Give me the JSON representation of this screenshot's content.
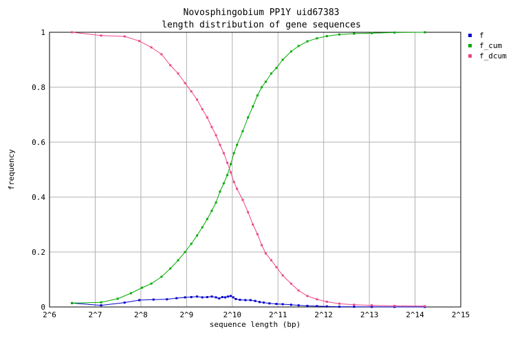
{
  "chart_data": {
    "type": "line",
    "title": "Novosphingobium PP1Y uid67383",
    "subtitle": "length distribution of gene sequences",
    "xlabel": "sequence length (bp)",
    "ylabel": "frequency",
    "x_scale": "log2",
    "xlim_exp": [
      6,
      15
    ],
    "ylim": [
      0,
      1
    ],
    "grid": true,
    "legend_position": "right",
    "x_ticks": [
      "2^6",
      "2^7",
      "2^8",
      "2^9",
      "2^10",
      "2^11",
      "2^12",
      "2^13",
      "2^14",
      "2^15"
    ],
    "y_ticks": [
      "0",
      "0.2",
      "0.4",
      "0.6",
      "0.8",
      "1"
    ],
    "series": [
      {
        "name": "f",
        "color": "#0000cc",
        "points": [
          [
            90,
            0.014
          ],
          [
            140,
            0.006
          ],
          [
            200,
            0.016
          ],
          [
            250,
            0.025
          ],
          [
            310,
            0.027
          ],
          [
            380,
            0.028
          ],
          [
            440,
            0.032
          ],
          [
            500,
            0.035
          ],
          [
            550,
            0.036
          ],
          [
            600,
            0.038
          ],
          [
            650,
            0.035
          ],
          [
            700,
            0.036
          ],
          [
            750,
            0.038
          ],
          [
            800,
            0.035
          ],
          [
            840,
            0.031
          ],
          [
            880,
            0.036
          ],
          [
            920,
            0.035
          ],
          [
            960,
            0.038
          ],
          [
            1000,
            0.04
          ],
          [
            1040,
            0.035
          ],
          [
            1080,
            0.029
          ],
          [
            1150,
            0.026
          ],
          [
            1250,
            0.025
          ],
          [
            1350,
            0.025
          ],
          [
            1450,
            0.022
          ],
          [
            1550,
            0.018
          ],
          [
            1650,
            0.016
          ],
          [
            1800,
            0.013
          ],
          [
            2000,
            0.011
          ],
          [
            2200,
            0.01
          ],
          [
            2500,
            0.008
          ],
          [
            2800,
            0.006
          ],
          [
            3200,
            0.004
          ],
          [
            3700,
            0.003
          ],
          [
            4300,
            0.002
          ],
          [
            5200,
            0.001
          ],
          [
            6500,
            0.0008
          ],
          [
            8500,
            0.0005
          ],
          [
            12000,
            0.0003
          ],
          [
            19000,
            0.0002
          ]
        ]
      },
      {
        "name": "f_cum",
        "color": "#00aa00",
        "points": [
          [
            90,
            0.014
          ],
          [
            140,
            0.017
          ],
          [
            180,
            0.03
          ],
          [
            220,
            0.05
          ],
          [
            260,
            0.07
          ],
          [
            300,
            0.085
          ],
          [
            350,
            0.11
          ],
          [
            400,
            0.14
          ],
          [
            450,
            0.17
          ],
          [
            500,
            0.2
          ],
          [
            550,
            0.23
          ],
          [
            600,
            0.26
          ],
          [
            650,
            0.29
          ],
          [
            700,
            0.32
          ],
          [
            750,
            0.35
          ],
          [
            800,
            0.38
          ],
          [
            850,
            0.42
          ],
          [
            900,
            0.45
          ],
          [
            950,
            0.48
          ],
          [
            1000,
            0.52
          ],
          [
            1050,
            0.56
          ],
          [
            1100,
            0.59
          ],
          [
            1200,
            0.64
          ],
          [
            1300,
            0.69
          ],
          [
            1400,
            0.73
          ],
          [
            1500,
            0.77
          ],
          [
            1600,
            0.8
          ],
          [
            1700,
            0.82
          ],
          [
            1850,
            0.85
          ],
          [
            2000,
            0.87
          ],
          [
            2200,
            0.9
          ],
          [
            2500,
            0.93
          ],
          [
            2800,
            0.95
          ],
          [
            3200,
            0.967
          ],
          [
            3700,
            0.978
          ],
          [
            4300,
            0.986
          ],
          [
            5200,
            0.992
          ],
          [
            6500,
            0.995
          ],
          [
            8500,
            0.997
          ],
          [
            12000,
            0.999
          ],
          [
            19000,
            1.0
          ]
        ]
      },
      {
        "name": "f_dcum",
        "color": "#ee4488",
        "points": [
          [
            90,
            1.0
          ],
          [
            140,
            0.988
          ],
          [
            200,
            0.985
          ],
          [
            250,
            0.968
          ],
          [
            300,
            0.945
          ],
          [
            350,
            0.92
          ],
          [
            400,
            0.88
          ],
          [
            450,
            0.85
          ],
          [
            500,
            0.815
          ],
          [
            550,
            0.785
          ],
          [
            600,
            0.755
          ],
          [
            650,
            0.72
          ],
          [
            700,
            0.69
          ],
          [
            750,
            0.655
          ],
          [
            800,
            0.625
          ],
          [
            850,
            0.59
          ],
          [
            900,
            0.56
          ],
          [
            950,
            0.525
          ],
          [
            1000,
            0.49
          ],
          [
            1050,
            0.455
          ],
          [
            1100,
            0.43
          ],
          [
            1200,
            0.39
          ],
          [
            1300,
            0.345
          ],
          [
            1400,
            0.3
          ],
          [
            1500,
            0.265
          ],
          [
            1600,
            0.225
          ],
          [
            1700,
            0.195
          ],
          [
            1850,
            0.17
          ],
          [
            2000,
            0.145
          ],
          [
            2200,
            0.115
          ],
          [
            2500,
            0.085
          ],
          [
            2800,
            0.06
          ],
          [
            3200,
            0.04
          ],
          [
            3700,
            0.028
          ],
          [
            4300,
            0.019
          ],
          [
            5200,
            0.012
          ],
          [
            6500,
            0.008
          ],
          [
            8500,
            0.006
          ],
          [
            12000,
            0.004
          ],
          [
            19000,
            0.003
          ]
        ]
      }
    ]
  }
}
